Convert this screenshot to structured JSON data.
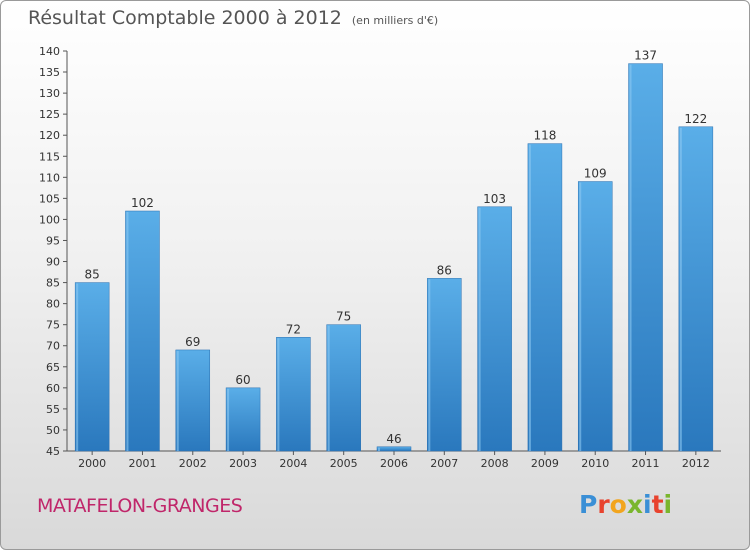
{
  "header": {
    "title": "Résultat Comptable 2000 à 2012",
    "subtitle": "(en milliers d'€)"
  },
  "footer": {
    "commune": "MATAFELON-GRANGES",
    "logo": "Proxiti",
    "logo_colors": [
      "#3a8fd6",
      "#e8432e",
      "#f2a51e",
      "#7ab62d",
      "#3a8fd6",
      "#e8432e",
      "#7ab62d"
    ]
  },
  "colors": {
    "bar": "#4a9fe0",
    "bar_dark": "#2e7cc2",
    "axis": "#555555",
    "title": "#555555",
    "commune": "#c0266a"
  },
  "chart_data": {
    "type": "bar",
    "title": "Résultat Comptable 2000 à 2012",
    "subtitle": "(en milliers d'€)",
    "categories": [
      "2000",
      "2001",
      "2002",
      "2003",
      "2004",
      "2005",
      "2006",
      "2007",
      "2008",
      "2009",
      "2010",
      "2011",
      "2012"
    ],
    "values": [
      85,
      102,
      69,
      60,
      72,
      75,
      46,
      86,
      103,
      118,
      109,
      137,
      122
    ],
    "ylim": [
      45,
      140
    ],
    "yticks": [
      45,
      50,
      55,
      60,
      65,
      70,
      75,
      80,
      85,
      90,
      95,
      100,
      105,
      110,
      115,
      120,
      125,
      130,
      135,
      140
    ],
    "grid": false,
    "legend": "none"
  }
}
